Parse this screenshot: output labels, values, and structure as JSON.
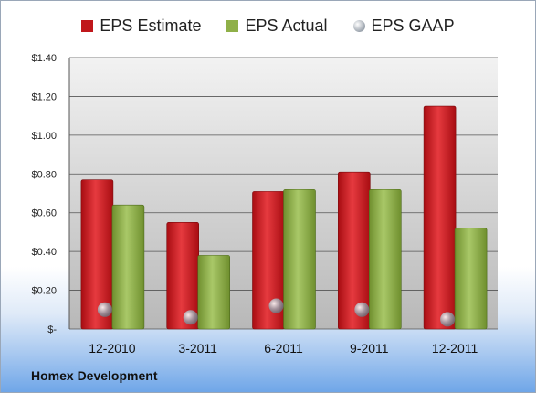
{
  "chart_data": {
    "type": "bar",
    "categories": [
      "12-2010",
      "3-2011",
      "6-2011",
      "9-2011",
      "12-2011"
    ],
    "series": [
      {
        "name": "EPS Estimate",
        "values": [
          0.77,
          0.55,
          0.71,
          0.81,
          1.15
        ],
        "color": "#c0171b"
      },
      {
        "name": "EPS Actual",
        "values": [
          0.64,
          0.38,
          0.72,
          0.72,
          0.52
        ],
        "color": "#8fb048"
      },
      {
        "name": "EPS GAAP",
        "values": [
          0.1,
          0.06,
          0.12,
          0.1,
          0.05
        ],
        "color": "#9ba3ad"
      }
    ],
    "ylim": [
      0,
      1.4
    ],
    "yticks": [
      "$-",
      "$0.20",
      "$0.40",
      "$0.60",
      "$0.80",
      "$1.00",
      "$1.20",
      "$1.40"
    ],
    "grid": true,
    "legend_position": "top"
  },
  "footer": {
    "title": "Homex Development"
  }
}
